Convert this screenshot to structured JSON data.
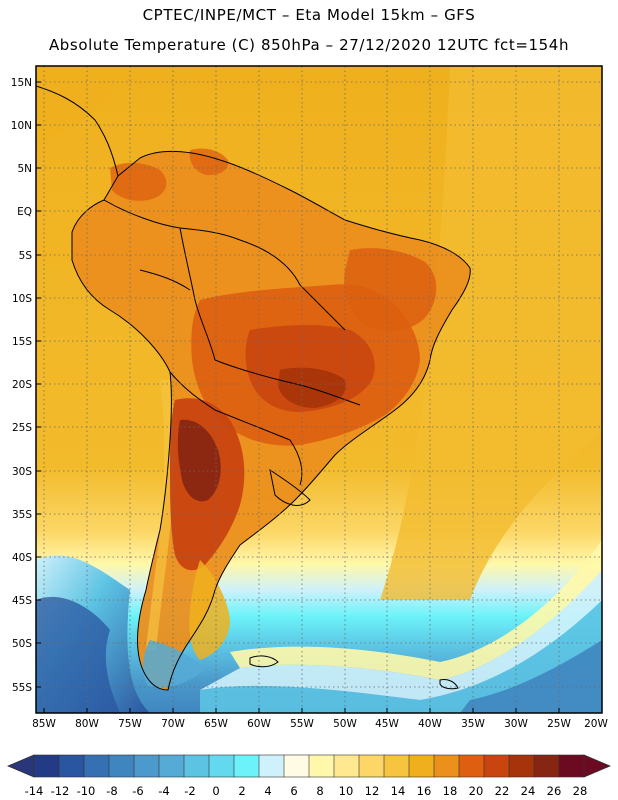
{
  "header": {
    "line1": "CPTEC/INPE/MCT –  Eta Model 15km – GFS",
    "line2": "Absolute Temperature (C) 850hPa – 27/12/2020 12UTC fct=154h"
  },
  "map": {
    "lat_labels": [
      "15N",
      "10N",
      "5N",
      "EQ",
      "5S",
      "10S",
      "15S",
      "20S",
      "25S",
      "30S",
      "35S",
      "40S",
      "45S",
      "50S",
      "55S"
    ],
    "lon_labels": [
      "85W",
      "80W",
      "75W",
      "70W",
      "65W",
      "60W",
      "55W",
      "50W",
      "45W",
      "40W",
      "35W",
      "30W",
      "25W",
      "20W"
    ],
    "lon_range": [
      -85,
      -20
    ],
    "lat_range": [
      -58,
      17
    ],
    "grid": "dotted"
  },
  "legend": {
    "labels": [
      "-14",
      "-12",
      "-10",
      "-8",
      "-6",
      "-4",
      "-2",
      "0",
      "2",
      "4",
      "6",
      "8",
      "10",
      "12",
      "14",
      "16",
      "18",
      "20",
      "22",
      "24",
      "26",
      "28"
    ],
    "low_arrow_color": "#29367a",
    "high_arrow_color": "#6b0a20",
    "colors": [
      "#233a86",
      "#2a55a0",
      "#3570b2",
      "#3f86c0",
      "#4b9acb",
      "#56aad6",
      "#5cc3e3",
      "#62d9ee",
      "#6cf3fa",
      "#cff1fb",
      "#fffbe4",
      "#fff8aa",
      "#ffe88f",
      "#fcd767",
      "#f6c440",
      "#f0b01d",
      "#eb8f1d",
      "#dd5f0f",
      "#c94510",
      "#a63309",
      "#852512",
      "#6b0a20"
    ]
  }
}
